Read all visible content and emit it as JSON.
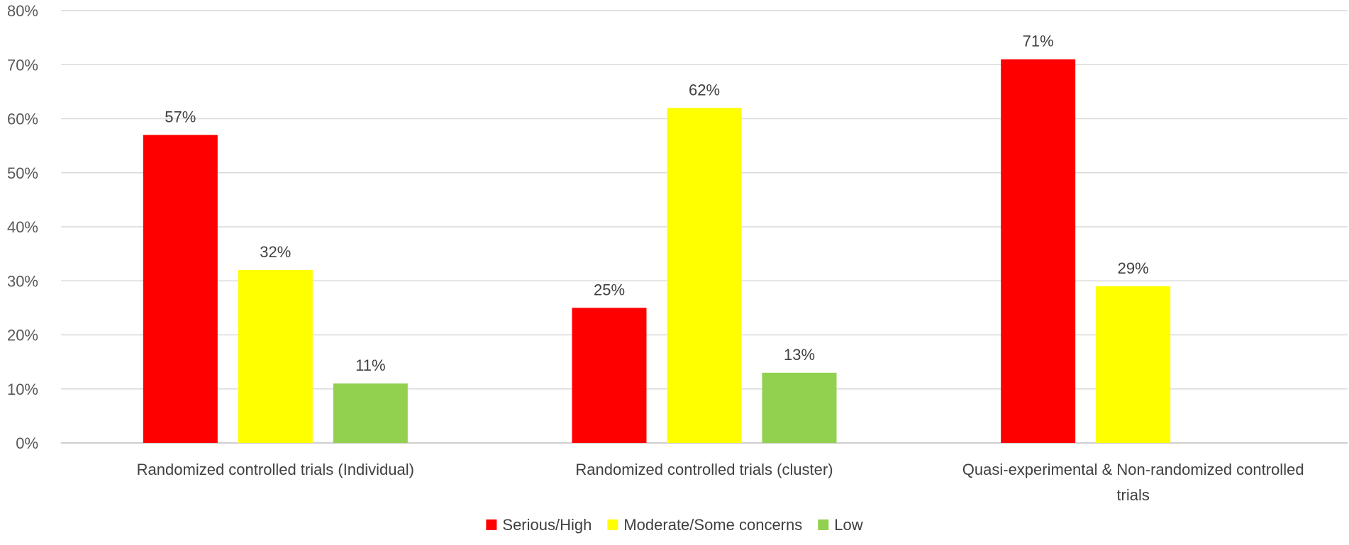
{
  "chart_data": {
    "type": "bar",
    "title": "",
    "xlabel": "",
    "ylabel": "",
    "ylim": [
      0,
      80
    ],
    "yticks": [
      "0%",
      "10%",
      "20%",
      "30%",
      "40%",
      "50%",
      "60%",
      "70%",
      "80%"
    ],
    "grid": true,
    "legend_position": "bottom",
    "categories": [
      [
        "Randomized controlled trials (Individual)"
      ],
      [
        "Randomized controlled trials (cluster)"
      ],
      [
        "Quasi-experimental & Non-randomized controlled",
        "trials"
      ]
    ],
    "series": [
      {
        "name": "Serious/High",
        "color": "#ff0000",
        "values": [
          57,
          25,
          71
        ],
        "labels": [
          "57%",
          "25%",
          "71%"
        ]
      },
      {
        "name": "Moderate/Some concerns",
        "color": "#ffff00",
        "values": [
          32,
          62,
          29
        ],
        "labels": [
          "32%",
          "62%",
          "29%"
        ]
      },
      {
        "name": "Low",
        "color": "#92d050",
        "values": [
          11,
          13,
          null
        ],
        "labels": [
          "11%",
          "13%",
          null
        ]
      }
    ]
  }
}
